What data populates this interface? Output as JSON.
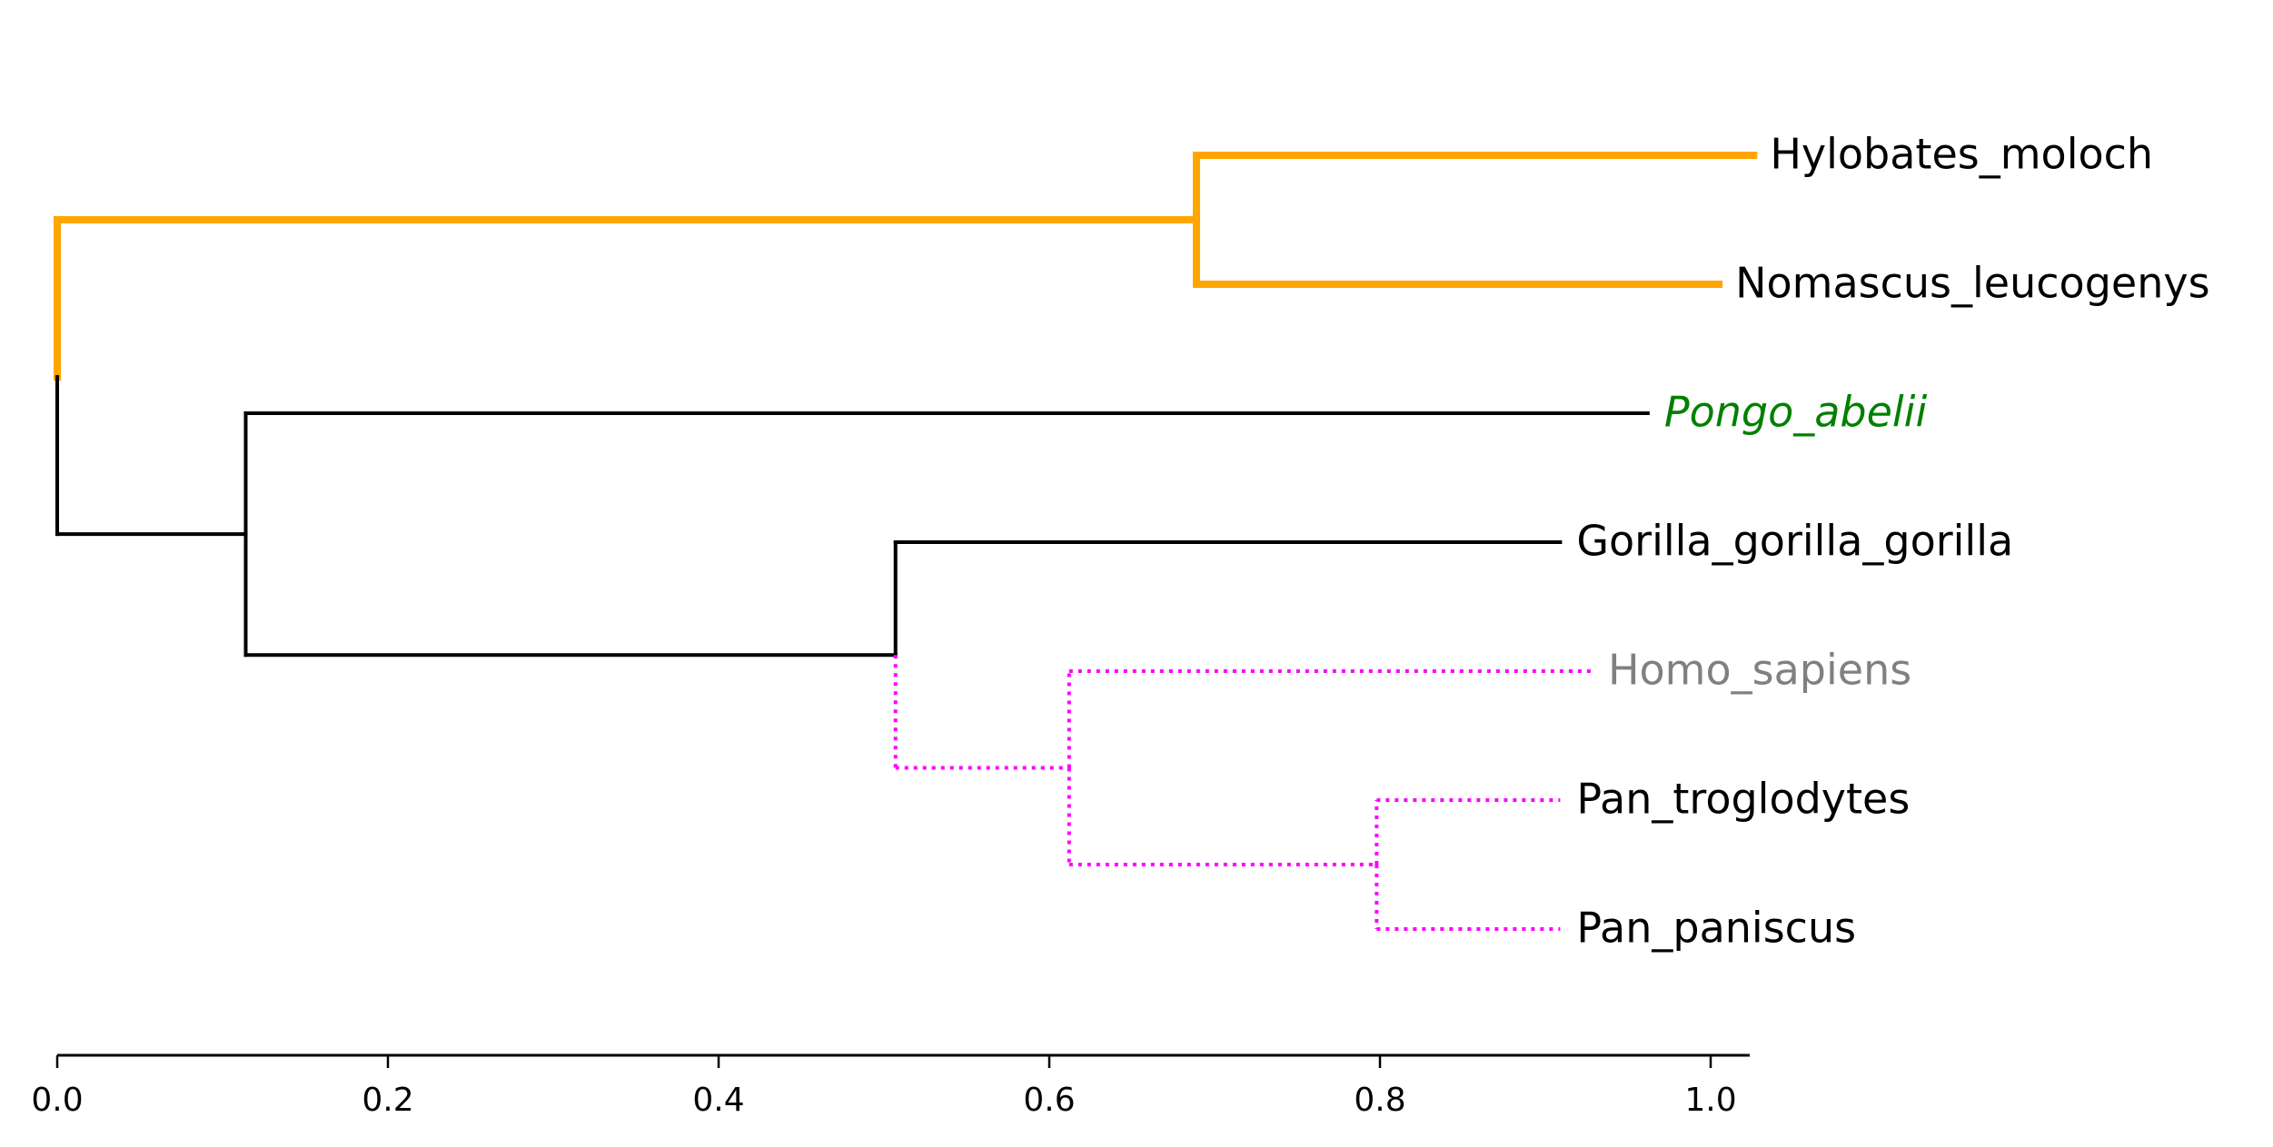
{
  "chart_data": {
    "type": "dendrogram",
    "title": "",
    "xlabel": "",
    "ylabel": "",
    "xlim": [
      0.0,
      1.025
    ],
    "x_ticks": [
      0.0,
      0.2,
      0.4,
      0.6,
      0.8,
      1.0
    ],
    "x_tick_labels": [
      "0.0",
      "0.2",
      "0.4",
      "0.6",
      "0.8",
      "1.0"
    ],
    "grid": false,
    "leaves": [
      {
        "name": "Hylobates_moloch",
        "x": 1.026,
        "label_color": "#000000",
        "label_style": "normal"
      },
      {
        "name": "Nomascus_leucogenys",
        "x": 1.005,
        "label_color": "#000000",
        "label_style": "normal"
      },
      {
        "name": "Pongo_abelii",
        "x": 0.962,
        "label_color": "#008000",
        "label_style": "italic"
      },
      {
        "name": "Gorilla_gorilla_gorilla",
        "x": 0.909,
        "label_color": "#000000",
        "label_style": "normal"
      },
      {
        "name": "Homo_sapiens",
        "x": 0.928,
        "label_color": "#808080",
        "label_style": "normal"
      },
      {
        "name": "Pan_troglodytes",
        "x": 0.909,
        "label_color": "#000000",
        "label_style": "normal"
      },
      {
        "name": "Pan_paniscus",
        "x": 0.909,
        "label_color": "#000000",
        "label_style": "normal"
      }
    ],
    "internal_nodes": [
      {
        "id": "root",
        "x": 0.0,
        "children": [
          "gibbons",
          "great_apes"
        ]
      },
      {
        "id": "gibbons",
        "x": 0.689,
        "children": [
          "Hylobates_moloch",
          "Nomascus_leucogenys"
        ],
        "clade_color": "#ffa500",
        "clade_style": "solid-thick"
      },
      {
        "id": "great_apes",
        "x": 0.114,
        "children": [
          "Pongo_abelii",
          "african_apes"
        ]
      },
      {
        "id": "african_apes",
        "x": 0.507,
        "children": [
          "Gorilla_gorilla_gorilla",
          "homo_pan"
        ]
      },
      {
        "id": "homo_pan",
        "x": 0.612,
        "children": [
          "Homo_sapiens",
          "pan"
        ],
        "clade_color": "#ff00ff",
        "clade_style": "dotted"
      },
      {
        "id": "pan",
        "x": 0.798,
        "children": [
          "Pan_troglodytes",
          "Pan_paniscus"
        ]
      }
    ],
    "colors": {
      "default_branch": "#000000",
      "gibbon_clade": "#ffa500",
      "homo_pan_clade": "#ff00ff",
      "pongo_label": "#008000",
      "homo_label": "#808080"
    }
  }
}
